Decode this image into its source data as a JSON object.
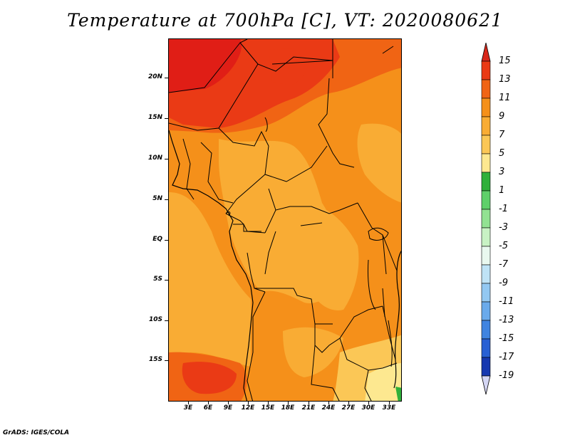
{
  "title": "Temperature at 700hPa [C], VT: 2020080621",
  "footer": "GrADS: IGES/COLA",
  "y_axis": [
    "20N",
    "15N",
    "10N",
    "5N",
    "EQ",
    "5S",
    "10S",
    "15S"
  ],
  "x_axis": [
    "3E",
    "6E",
    "9E",
    "12E",
    "15E",
    "18E",
    "21E",
    "24E",
    "27E",
    "30E",
    "33E"
  ],
  "colorbar": {
    "labels": [
      "15",
      "13",
      "11",
      "9",
      "7",
      "5",
      "3",
      "1",
      "-1",
      "-3",
      "-5",
      "-7",
      "-9",
      "-11",
      "-13",
      "-15",
      "-17",
      "-19"
    ],
    "colors": [
      "#e01e16",
      "#ea3a15",
      "#f06414",
      "#f5901a",
      "#f9ac34",
      "#fbc756",
      "#fde890",
      "#2fb03a",
      "#5fd06a",
      "#92e292",
      "#c8f2c4",
      "#e9f8ef",
      "#bfe3f6",
      "#93c8f2",
      "#6aaaeb",
      "#4084e0",
      "#2860d4",
      "#1638b0",
      "#0c168a"
    ],
    "top_arrow_color": "#d8271a",
    "bottom_arrow_color": "#d4d6f4"
  }
}
